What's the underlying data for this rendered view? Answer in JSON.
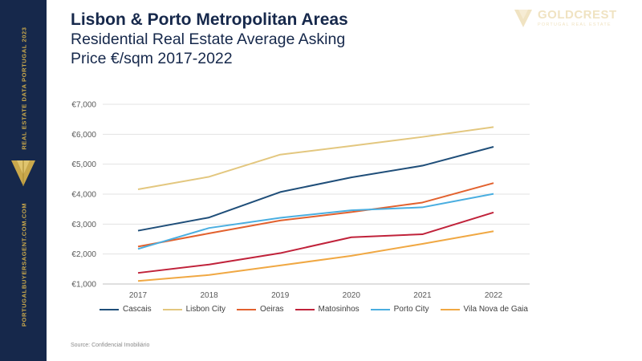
{
  "sidebar": {
    "top_text": "REAL ESTATE DATA PORTUGAL 2023",
    "bottom_text": "PORTUGALBUYERSAGENT.COM.COM",
    "logo_icon": "gold-triangle-logo-icon",
    "background": "#16284b",
    "accent": "#c9a84c"
  },
  "header": {
    "title": "Lisbon & Porto Metropolitan Areas",
    "subtitle_line1": "Residential Real Estate Average Asking",
    "subtitle_line2": "Price €/sqm 2017-2022"
  },
  "brand": {
    "name": "GOLDCREST",
    "tagline": "PORTUGAL REAL ESTATE",
    "icon": "goldcrest-logo-icon"
  },
  "chart_data": {
    "type": "line",
    "x": [
      2017,
      2018,
      2019,
      2020,
      2021,
      2022
    ],
    "y_ticks": [
      "€1,000",
      "€2,000",
      "€3,000",
      "€4,000",
      "€5,000",
      "€6,000",
      "€7,000"
    ],
    "ylim": [
      1000,
      7000
    ],
    "grid": true,
    "legend_position": "bottom",
    "series": [
      {
        "name": "Cascais",
        "color": "#1f4e79",
        "values": [
          2780,
          3220,
          4070,
          4560,
          4950,
          5580
        ]
      },
      {
        "name": "Lisbon City",
        "color": "#e3c77f",
        "values": [
          4160,
          4580,
          5320,
          5610,
          5910,
          6240
        ]
      },
      {
        "name": "Oeiras",
        "color": "#e2612e",
        "values": [
          2250,
          2690,
          3120,
          3400,
          3720,
          4370
        ]
      },
      {
        "name": "Matosinhos",
        "color": "#c0223a",
        "values": [
          1370,
          1650,
          2030,
          2560,
          2660,
          3390
        ]
      },
      {
        "name": "Porto City",
        "color": "#4aaee0",
        "values": [
          2170,
          2870,
          3210,
          3460,
          3560,
          4010
        ]
      },
      {
        "name": "Vila Nova de Gaia",
        "color": "#f0a843",
        "values": [
          1100,
          1300,
          1620,
          1940,
          2340,
          2760
        ]
      }
    ]
  },
  "footer": {
    "source": "Source: Confidencial Imobiliário"
  }
}
